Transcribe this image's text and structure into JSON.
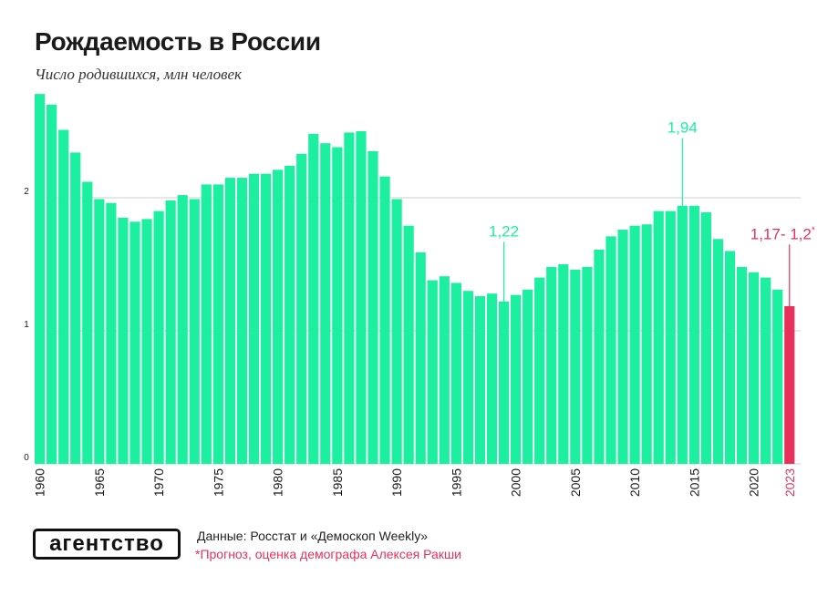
{
  "header": {
    "title": "Рождаемость в России",
    "subtitle": "Число родившихся, млн человек"
  },
  "footer": {
    "logo": "агентство",
    "source": "Данные: Росстат и «Демоскоп Weekly»",
    "footnote": "*Прогноз, оценка демографа Алексея Ракши"
  },
  "colors": {
    "bar": "#1cf0a0",
    "forecast": "#e8315a",
    "grid": "#cfcfcf",
    "axis_text": "#1a1a1a"
  },
  "chart_data": {
    "type": "bar",
    "title": "Рождаемость в России",
    "subtitle": "Число родившихся, млн человек",
    "xlabel": "",
    "ylabel": "",
    "ylim": [
      0,
      2.6
    ],
    "yticks": [
      0,
      1,
      2
    ],
    "ytick_labels": [
      "0",
      "1",
      "2"
    ],
    "grid": true,
    "x": [
      1960,
      1961,
      1962,
      1963,
      1964,
      1965,
      1966,
      1967,
      1968,
      1969,
      1970,
      1971,
      1972,
      1973,
      1974,
      1975,
      1976,
      1977,
      1978,
      1979,
      1980,
      1981,
      1982,
      1983,
      1984,
      1985,
      1986,
      1987,
      1988,
      1989,
      1990,
      1991,
      1992,
      1993,
      1994,
      1995,
      1996,
      1997,
      1998,
      1999,
      2000,
      2001,
      2002,
      2003,
      2004,
      2005,
      2006,
      2007,
      2008,
      2009,
      2010,
      2011,
      2012,
      2013,
      2014,
      2015,
      2016,
      2017,
      2018,
      2019,
      2020,
      2021,
      2022,
      2023
    ],
    "values": [
      2.78,
      2.7,
      2.51,
      2.34,
      2.12,
      1.99,
      1.96,
      1.85,
      1.82,
      1.84,
      1.9,
      1.98,
      2.02,
      1.99,
      2.1,
      2.1,
      2.15,
      2.15,
      2.18,
      2.18,
      2.21,
      2.24,
      2.33,
      2.48,
      2.41,
      2.38,
      2.49,
      2.5,
      2.35,
      2.16,
      1.99,
      1.79,
      1.59,
      1.38,
      1.41,
      1.36,
      1.3,
      1.26,
      1.28,
      1.22,
      1.27,
      1.31,
      1.4,
      1.48,
      1.5,
      1.46,
      1.48,
      1.61,
      1.71,
      1.76,
      1.79,
      1.8,
      1.9,
      1.9,
      1.94,
      1.94,
      1.89,
      1.69,
      1.6,
      1.48,
      1.44,
      1.4,
      1.31,
      1.185
    ],
    "forecast_index": 63,
    "xtick_labels": [
      {
        "year": 1960,
        "label": "1960"
      },
      {
        "year": 1965,
        "label": "1965"
      },
      {
        "year": 1970,
        "label": "1970"
      },
      {
        "year": 1975,
        "label": "1975"
      },
      {
        "year": 1980,
        "label": "1980"
      },
      {
        "year": 1985,
        "label": "1985"
      },
      {
        "year": 1990,
        "label": "1990"
      },
      {
        "year": 1995,
        "label": "1995"
      },
      {
        "year": 2000,
        "label": "2000"
      },
      {
        "year": 2005,
        "label": "2005"
      },
      {
        "year": 2010,
        "label": "2010"
      },
      {
        "year": 2015,
        "label": "2015"
      },
      {
        "year": 2020,
        "label": "2020"
      },
      {
        "year": 2023,
        "label": "2023"
      }
    ],
    "annotations": [
      {
        "year": 1999,
        "value": 1.22,
        "label": "1,22",
        "label_y": 1.71
      },
      {
        "year": 2014,
        "value": 1.94,
        "label": "1,94",
        "label_y": 2.49
      },
      {
        "year": 2023,
        "value": 1.185,
        "label": "1,17- 1,2",
        "mark": "*",
        "label_y": 1.69,
        "forecast": true
      }
    ]
  }
}
